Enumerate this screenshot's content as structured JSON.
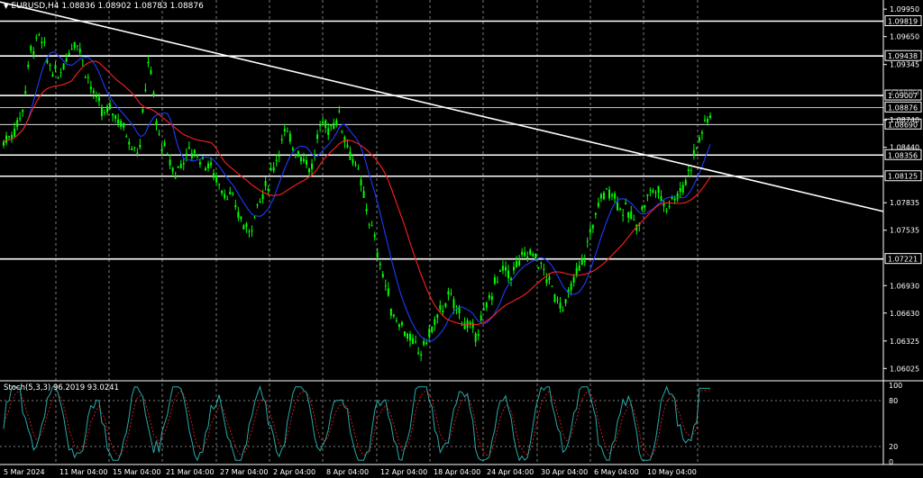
{
  "header": {
    "arrow": "▼",
    "symbol_tf": "EURUSD,H4",
    "ohlc": "1.08836 1.08902 1.08783 1.08876"
  },
  "stoch": {
    "label": "Stoch(5,3,3) 96.2019 93.0241"
  },
  "colors": {
    "background": "#000000",
    "candle": "#00ff00",
    "ma_fast": "#1e3cff",
    "ma_slow": "#ff2020",
    "trendline": "#ffffff",
    "stoch_main": "#2aa9a9",
    "stoch_signal": "#ff2020",
    "grid": "#ffffff"
  },
  "price_axis": {
    "ticks": [
      "1.09950",
      "1.09650",
      "1.09345",
      "1.08740",
      "1.08440",
      "1.07835",
      "1.07535",
      "1.06930",
      "1.06630",
      "1.06325",
      "1.06025"
    ],
    "levels": [
      {
        "label": "1.09819",
        "boxed": true
      },
      {
        "label": "1.09438",
        "boxed": true
      },
      {
        "label": "1.09007",
        "boxed": true
      },
      {
        "label": "1.08876",
        "boxed": true
      },
      {
        "label": "1.08690",
        "boxed": true
      },
      {
        "label": "1.08356",
        "boxed": true
      },
      {
        "label": "1.08125",
        "boxed": true
      },
      {
        "label": "1.07221",
        "boxed": true
      }
    ],
    "faded_tick": "1.09043"
  },
  "stoch_axis": {
    "ticks": [
      "100",
      "80",
      "20",
      "0"
    ]
  },
  "time_axis": {
    "labels": [
      "5 Mar 2024",
      "11 Mar 04:00",
      "15 Mar 04:00",
      "21 Mar 04:00",
      "27 Mar 04:00",
      "2 Apr 04:00",
      "8 Apr 04:00",
      "12 Apr 04:00",
      "18 Apr 04:00",
      "24 Apr 04:00",
      "30 Apr 04:00",
      "6 May 04:00",
      "10 May 04:00"
    ]
  },
  "chart_data": {
    "type": "line",
    "title": "EURUSD,H4",
    "ylim": [
      1.059,
      1.1005
    ],
    "horizontal_levels": [
      1.09819,
      1.09438,
      1.09007,
      1.08876,
      1.0869,
      1.08356,
      1.08125,
      1.07221
    ],
    "anchors_x": [
      "5 Mar 2024",
      "11 Mar 04:00",
      "15 Mar 04:00",
      "21 Mar 04:00",
      "27 Mar 04:00",
      "2 Apr 04:00",
      "8 Apr 04:00",
      "12 Apr 04:00",
      "18 Apr 04:00",
      "24 Apr 04:00",
      "30 Apr 04:00",
      "6 May 04:00",
      "10 May 04:00"
    ],
    "price_path": [
      1.085,
      1.086,
      1.088,
      1.095,
      1.0965,
      1.0935,
      1.092,
      1.0945,
      1.0965,
      1.093,
      1.09,
      1.088,
      1.0885,
      1.087,
      1.085,
      1.084,
      1.0945,
      1.086,
      1.0835,
      1.0815,
      1.0835,
      1.084,
      1.083,
      1.082,
      1.08,
      1.079,
      1.077,
      1.075,
      1.078,
      1.08,
      1.083,
      1.086,
      1.0845,
      1.0835,
      1.082,
      1.087,
      1.0865,
      1.088,
      1.0845,
      1.082,
      1.078,
      1.074,
      1.07,
      1.066,
      1.065,
      1.063,
      1.062,
      1.064,
      1.066,
      1.068,
      1.067,
      1.065,
      1.064,
      1.066,
      1.069,
      1.071,
      1.0705,
      1.072,
      1.073,
      1.072,
      1.07,
      1.068,
      1.067,
      1.07,
      1.072,
      1.076,
      1.079,
      1.08,
      1.078,
      1.077,
      1.076,
      1.079,
      1.08,
      1.078,
      1.079,
      1.08,
      1.083,
      1.086,
      1.088
    ],
    "trendline": {
      "start": 1.0995,
      "end": 1.0775
    },
    "stochastic": {
      "k_last": 96.2019,
      "d_last": 93.0241,
      "levels": [
        80,
        20
      ]
    }
  }
}
